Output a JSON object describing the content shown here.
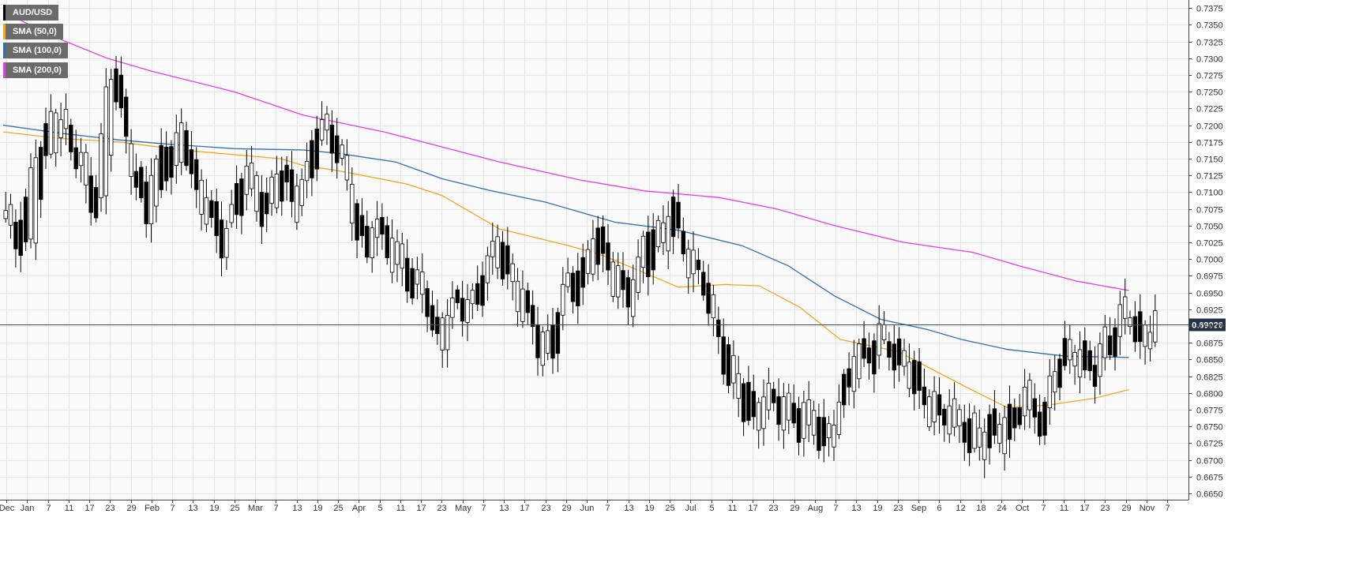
{
  "chart_data": {
    "type": "candlestick",
    "title": "AUD/USD",
    "legend": [
      {
        "label": "AUD/USD",
        "color": "#000000"
      },
      {
        "label": "SMA (50,0)",
        "color": "#f5a623"
      },
      {
        "label": "SMA (100,0)",
        "color": "#2f6fb5"
      },
      {
        "label": "SMA (200,0)",
        "color": "#e83ce8"
      }
    ],
    "last_price": "0.69026",
    "last_price_value": 0.69026,
    "ylim": [
      0.665,
      0.7387
    ],
    "y_ticks": [
      "0.7375",
      "0.7350",
      "0.7325",
      "0.7300",
      "0.7275",
      "0.7250",
      "0.7225",
      "0.7200",
      "0.7175",
      "0.7150",
      "0.7125",
      "0.7100",
      "0.7075",
      "0.7050",
      "0.7025",
      "0.7000",
      "0.6975",
      "0.6950",
      "0.6925",
      "0.6900",
      "0.6875",
      "0.6850",
      "0.6825",
      "0.6800",
      "0.6775",
      "0.6750",
      "0.6725",
      "0.6700",
      "0.6675",
      "0.6650"
    ],
    "x_ticks": [
      "Dec",
      "Jan",
      "7",
      "11",
      "17",
      "23",
      "29",
      "Feb",
      "7",
      "13",
      "19",
      "25",
      "Mar",
      "7",
      "13",
      "19",
      "25",
      "Apr",
      "5",
      "11",
      "17",
      "23",
      "May",
      "7",
      "13",
      "17",
      "23",
      "29",
      "Jun",
      "7",
      "13",
      "19",
      "25",
      "Jul",
      "5",
      "11",
      "17",
      "23",
      "29",
      "Aug",
      "7",
      "13",
      "19",
      "23",
      "Sep",
      "6",
      "12",
      "18",
      "24",
      "Oct",
      "7",
      "11",
      "17",
      "23",
      "29",
      "Nov",
      "7"
    ],
    "grid": true,
    "colors": {
      "up": "#ffffff",
      "down": "#000000",
      "sma50": "#f5a623",
      "sma100": "#2f6fb5",
      "sma200": "#e83ce8"
    },
    "anchors": [
      [
        0.7055,
        0.7062
      ],
      [
        0.7035,
        0.7045
      ],
      [
        0.703,
        0.709
      ],
      [
        0.704,
        0.714
      ],
      [
        0.7145,
        0.718
      ],
      [
        0.719,
        0.7225
      ],
      [
        0.7195,
        0.7205
      ],
      [
        0.715,
        0.716
      ],
      [
        0.7115,
        0.714
      ],
      [
        0.7085,
        0.711
      ],
      [
        0.709,
        0.723
      ],
      [
        0.724,
        0.728
      ],
      [
        0.721,
        0.724
      ],
      [
        0.711,
        0.713
      ],
      [
        0.7065,
        0.7095
      ],
      [
        0.707,
        0.714
      ],
      [
        0.715,
        0.717
      ],
      [
        0.7125,
        0.7165
      ],
      [
        0.7165,
        0.719
      ],
      [
        0.711,
        0.714
      ],
      [
        0.708,
        0.7095
      ],
      [
        0.703,
        0.706
      ],
      [
        0.7015,
        0.704
      ],
      [
        0.708,
        0.71
      ],
      [
        0.71,
        0.713
      ],
      [
        0.7085,
        0.711
      ],
      [
        0.707,
        0.7095
      ],
      [
        0.71,
        0.712
      ],
      [
        0.71,
        0.7125
      ],
      [
        0.708,
        0.7105
      ],
      [
        0.711,
        0.713
      ],
      [
        0.715,
        0.7185
      ],
      [
        0.7185,
        0.7195
      ],
      [
        0.718,
        0.7195
      ],
      [
        0.7135,
        0.715
      ],
      [
        0.704,
        0.7075
      ],
      [
        0.701,
        0.7035
      ],
      [
        0.705,
        0.706
      ],
      [
        0.702,
        0.704
      ],
      [
        0.6985,
        0.701
      ],
      [
        0.699,
        0.701
      ],
      [
        0.6955,
        0.6975
      ],
      [
        0.6945,
        0.6955
      ],
      [
        0.688,
        0.69
      ],
      [
        0.689,
        0.6915
      ],
      [
        0.6925,
        0.6935
      ],
      [
        0.692,
        0.6925
      ],
      [
        0.6935,
        0.695
      ],
      [
        0.6975,
        0.699
      ],
      [
        0.699,
        0.7015
      ],
      [
        0.6995,
        0.702
      ],
      [
        0.6955,
        0.6975
      ],
      [
        0.692,
        0.694
      ],
      [
        0.688,
        0.69
      ],
      [
        0.6855,
        0.688
      ],
      [
        0.687,
        0.6905
      ],
      [
        0.6935,
        0.6955
      ],
      [
        0.6955,
        0.6975
      ],
      [
        0.697,
        0.7
      ],
      [
        0.701,
        0.7035
      ],
      [
        0.699,
        0.702
      ],
      [
        0.697,
        0.699
      ],
      [
        0.6945,
        0.697
      ],
      [
        0.693,
        0.6955
      ],
      [
        0.699,
        0.704
      ],
      [
        0.702,
        0.7045
      ],
      [
        0.7025,
        0.7045
      ],
      [
        0.7045,
        0.708
      ],
      [
        0.7015,
        0.703
      ],
      [
        0.6985,
        0.6995
      ],
      [
        0.695,
        0.6965
      ],
      [
        0.69,
        0.6915
      ],
      [
        0.685,
        0.6885
      ],
      [
        0.68,
        0.6825
      ],
      [
        0.677,
        0.68
      ],
      [
        0.676,
        0.679
      ],
      [
        0.678,
        0.6795
      ],
      [
        0.677,
        0.679
      ],
      [
        0.676,
        0.678
      ],
      [
        0.6765,
        0.679
      ],
      [
        0.674,
        0.6765
      ],
      [
        0.674,
        0.6765
      ],
      [
        0.673,
        0.6745
      ],
      [
        0.6745,
        0.676
      ],
      [
        0.678,
        0.6805
      ],
      [
        0.683,
        0.686
      ],
      [
        0.686,
        0.687
      ],
      [
        0.685,
        0.6875
      ],
      [
        0.687,
        0.688
      ],
      [
        0.686,
        0.687
      ],
      [
        0.684,
        0.686
      ],
      [
        0.6805,
        0.6825
      ],
      [
        0.678,
        0.6805
      ],
      [
        0.6775,
        0.679
      ],
      [
        0.676,
        0.6775
      ],
      [
        0.6745,
        0.676
      ],
      [
        0.675,
        0.6765
      ],
      [
        0.672,
        0.675
      ],
      [
        0.6715,
        0.6735
      ],
      [
        0.6735,
        0.6755
      ],
      [
        0.674,
        0.677
      ],
      [
        0.6745,
        0.676
      ],
      [
        0.678,
        0.6795
      ],
      [
        0.677,
        0.679
      ],
      [
        0.6755,
        0.6775
      ],
      [
        0.68,
        0.683
      ],
      [
        0.685,
        0.686
      ],
      [
        0.686,
        0.6875
      ],
      [
        0.6835,
        0.685
      ],
      [
        0.682,
        0.684
      ],
      [
        0.686,
        0.688
      ],
      [
        0.688,
        0.6905
      ],
      [
        0.6905,
        0.6915
      ],
      [
        0.6895,
        0.691
      ],
      [
        0.688,
        0.6895
      ],
      [
        0.689,
        0.691
      ]
    ],
    "sma50_points": [
      [
        0,
        0.719
      ],
      [
        0.05,
        0.718
      ],
      [
        0.1,
        0.7175
      ],
      [
        0.16,
        0.7162
      ],
      [
        0.24,
        0.715
      ],
      [
        0.26,
        0.714
      ],
      [
        0.29,
        0.7132
      ],
      [
        0.35,
        0.7112
      ],
      [
        0.38,
        0.7095
      ],
      [
        0.43,
        0.7045
      ],
      [
        0.49,
        0.702
      ],
      [
        0.52,
        0.7005
      ],
      [
        0.585,
        0.6958
      ],
      [
        0.625,
        0.6962
      ],
      [
        0.655,
        0.696
      ],
      [
        0.69,
        0.6928
      ],
      [
        0.725,
        0.688
      ],
      [
        0.775,
        0.6862
      ],
      [
        0.835,
        0.6808
      ],
      [
        0.87,
        0.6778
      ],
      [
        0.905,
        0.6782
      ],
      [
        0.945,
        0.6792
      ],
      [
        0.975,
        0.6805
      ]
    ],
    "sma100_points": [
      [
        0,
        0.72
      ],
      [
        0.05,
        0.7188
      ],
      [
        0.1,
        0.7178
      ],
      [
        0.14,
        0.7172
      ],
      [
        0.2,
        0.7165
      ],
      [
        0.26,
        0.7163
      ],
      [
        0.29,
        0.7158
      ],
      [
        0.34,
        0.7145
      ],
      [
        0.38,
        0.712
      ],
      [
        0.42,
        0.7103
      ],
      [
        0.47,
        0.7085
      ],
      [
        0.53,
        0.7055
      ],
      [
        0.585,
        0.7043
      ],
      [
        0.64,
        0.702
      ],
      [
        0.68,
        0.699
      ],
      [
        0.72,
        0.6945
      ],
      [
        0.76,
        0.691
      ],
      [
        0.8,
        0.6895
      ],
      [
        0.83,
        0.688
      ],
      [
        0.87,
        0.6865
      ],
      [
        0.92,
        0.6855
      ],
      [
        0.975,
        0.6853
      ]
    ],
    "sma200_points": [
      [
        0,
        0.737
      ],
      [
        0.04,
        0.7335
      ],
      [
        0.09,
        0.73
      ],
      [
        0.13,
        0.728
      ],
      [
        0.2,
        0.725
      ],
      [
        0.26,
        0.7215
      ],
      [
        0.33,
        0.719
      ],
      [
        0.37,
        0.7172
      ],
      [
        0.43,
        0.7145
      ],
      [
        0.5,
        0.7118
      ],
      [
        0.555,
        0.7102
      ],
      [
        0.62,
        0.7092
      ],
      [
        0.67,
        0.7075
      ],
      [
        0.72,
        0.705
      ],
      [
        0.78,
        0.7025
      ],
      [
        0.84,
        0.701
      ],
      [
        0.88,
        0.699
      ],
      [
        0.93,
        0.6967
      ],
      [
        0.975,
        0.6953
      ]
    ]
  }
}
